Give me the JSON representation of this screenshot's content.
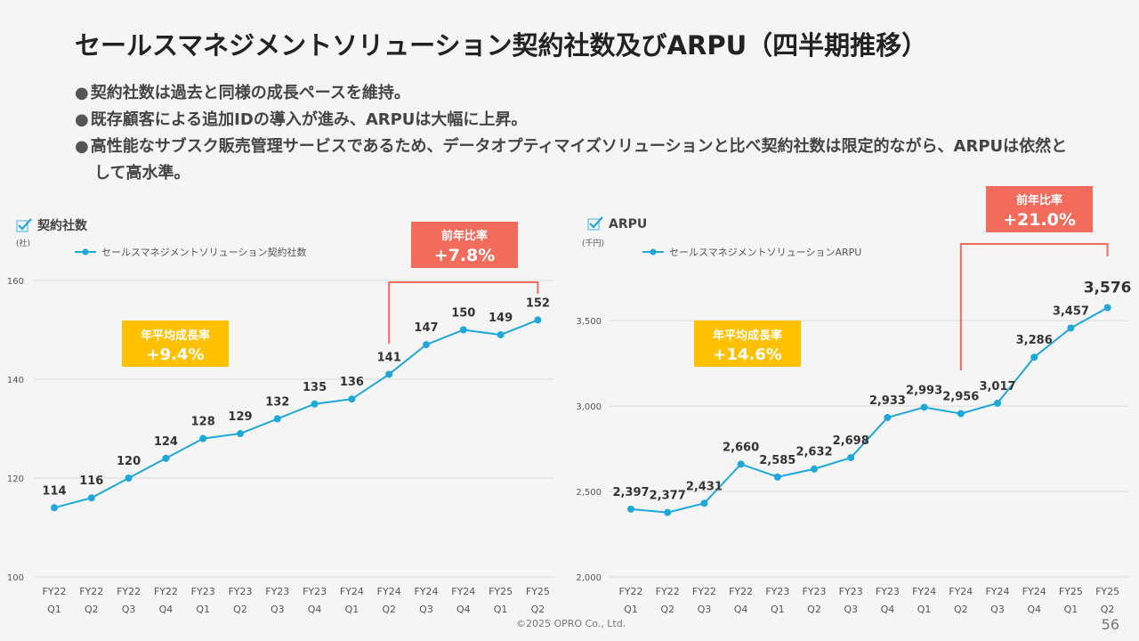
{
  "title": "セールスマネジメントソリューション契約社数及びARPU（四半期推移）",
  "bullets": [
    "契約社数は過去と同様の成長ペースを維持。",
    "既存顧客による追加IDの導入が進み、ARPUは大幅に上昇。",
    "高性能なサブスク販売管理サービスであるため、データオプティマイズソリューションと比べ契約社数は限定的ながら、ARPUは依然として高水準。"
  ],
  "footer": "©2025 OPRO Co., Ltd.",
  "page_number": "56",
  "colors": {
    "line": "#1ea7d8",
    "callout": "#f26b5b",
    "growth_badge": "#ffc000"
  },
  "chart_data": [
    {
      "type": "line",
      "section_title": "契約社数",
      "unit": "(社)",
      "categories": [
        [
          "FY22",
          "Q1"
        ],
        [
          "FY22",
          "Q2"
        ],
        [
          "FY22",
          "Q3"
        ],
        [
          "FY22",
          "Q4"
        ],
        [
          "FY23",
          "Q1"
        ],
        [
          "FY23",
          "Q2"
        ],
        [
          "FY23",
          "Q3"
        ],
        [
          "FY23",
          "Q4"
        ],
        [
          "FY24",
          "Q1"
        ],
        [
          "FY24",
          "Q2"
        ],
        [
          "FY24",
          "Q3"
        ],
        [
          "FY24",
          "Q4"
        ],
        [
          "FY25",
          "Q1"
        ],
        [
          "FY25",
          "Q2"
        ]
      ],
      "series": [
        {
          "name": "セールスマネジメントソリューション契約社数",
          "values": [
            114,
            116,
            120,
            124,
            128,
            129,
            132,
            135,
            136,
            141,
            147,
            150,
            149,
            152
          ],
          "labels": [
            "114",
            "116",
            "120",
            "124",
            "128",
            "129",
            "132",
            "135",
            "136",
            "141",
            "147",
            "150",
            "149",
            "152"
          ]
        }
      ],
      "ylim": [
        100,
        160
      ],
      "yticks": [
        100,
        120,
        140,
        160
      ],
      "ytick_labels": [
        "100",
        "120",
        "140",
        "160"
      ],
      "grid": true,
      "legend": "top-left",
      "growth_badge": {
        "label": "年平均成長率",
        "value": "+9.4%"
      },
      "yoy_callout": {
        "label": "前年比率",
        "value": "+7.8%",
        "from_index": 9,
        "to_index": 13
      }
    },
    {
      "type": "line",
      "section_title": "ARPU",
      "unit": "(千円)",
      "categories": [
        [
          "FY22",
          "Q1"
        ],
        [
          "FY22",
          "Q2"
        ],
        [
          "FY22",
          "Q3"
        ],
        [
          "FY22",
          "Q4"
        ],
        [
          "FY23",
          "Q1"
        ],
        [
          "FY23",
          "Q2"
        ],
        [
          "FY23",
          "Q3"
        ],
        [
          "FY23",
          "Q4"
        ],
        [
          "FY24",
          "Q1"
        ],
        [
          "FY24",
          "Q2"
        ],
        [
          "FY24",
          "Q3"
        ],
        [
          "FY24",
          "Q4"
        ],
        [
          "FY25",
          "Q1"
        ],
        [
          "FY25",
          "Q2"
        ]
      ],
      "series": [
        {
          "name": "セールスマネジメントソリューションARPU",
          "values": [
            2397,
            2377,
            2431,
            2660,
            2585,
            2632,
            2698,
            2933,
            2993,
            2956,
            3017,
            3286,
            3457,
            3576
          ],
          "labels": [
            "2,397",
            "2,377",
            "2,431",
            "2,660",
            "2,585",
            "2,632",
            "2,698",
            "2,933",
            "2,993",
            "2,956",
            "3,017",
            "3,286",
            "3,457",
            "3,576"
          ]
        }
      ],
      "ylim": [
        2000,
        3600
      ],
      "yticks": [
        2000,
        2500,
        3000,
        3500
      ],
      "ytick_labels": [
        "2,000",
        "2,500",
        "3,000",
        "3,500"
      ],
      "grid": true,
      "legend": "top-left",
      "growth_badge": {
        "label": "年平均成長率",
        "value": "+14.6%"
      },
      "yoy_callout": {
        "label": "前年比率",
        "value": "+21.0%",
        "from_index": 9,
        "to_index": 13
      }
    }
  ]
}
